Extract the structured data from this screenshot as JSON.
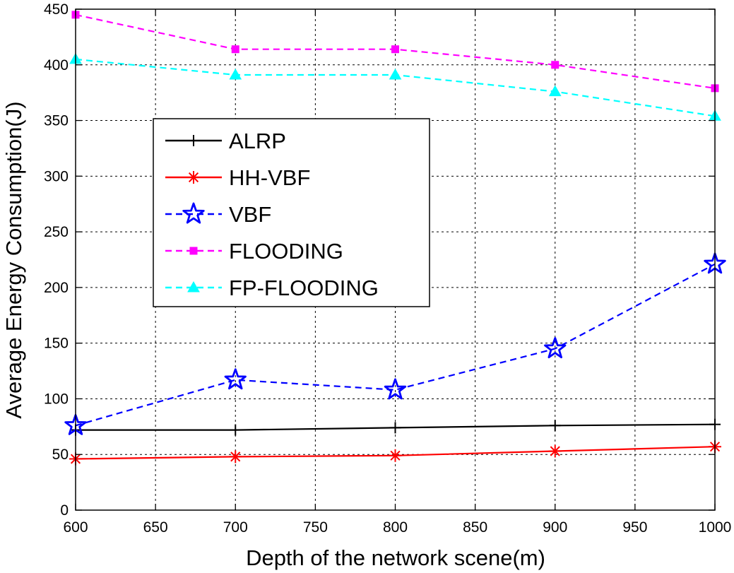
{
  "chart_data": {
    "type": "line",
    "title": "",
    "xlabel": "Depth of the network scene(m)",
    "ylabel": "Average Energy Consumption(J)",
    "x": [
      600,
      700,
      800,
      900,
      1000
    ],
    "xlim": [
      600,
      1000
    ],
    "ylim": [
      0,
      450
    ],
    "xticks": [
      "600",
      "650",
      "700",
      "750",
      "800",
      "850",
      "900",
      "950",
      "1000"
    ],
    "yticks": [
      "0",
      "50",
      "100",
      "150",
      "200",
      "250",
      "300",
      "350",
      "400",
      "450"
    ],
    "grid": true,
    "legend_position": "upper-left",
    "series": [
      {
        "name": "ALRP",
        "values": [
          72,
          72,
          74,
          76,
          77
        ],
        "color": "#000000",
        "dash": "solid",
        "marker": "plus"
      },
      {
        "name": "HH-VBF",
        "values": [
          46,
          48,
          49,
          53,
          57
        ],
        "color": "#ff0000",
        "dash": "solid",
        "marker": "asterisk"
      },
      {
        "name": "VBF",
        "values": [
          76,
          117,
          108,
          145,
          221
        ],
        "color": "#0000ff",
        "dash": "dashed",
        "marker": "star"
      },
      {
        "name": "FLOODING",
        "values": [
          445,
          414,
          414,
          400,
          379
        ],
        "color": "#ff00ff",
        "dash": "dashed",
        "marker": "square"
      },
      {
        "name": "FP-FLOODING",
        "values": [
          405,
          391,
          391,
          376,
          354
        ],
        "color": "#00ffff",
        "dash": "dashed",
        "marker": "triangle"
      }
    ]
  }
}
